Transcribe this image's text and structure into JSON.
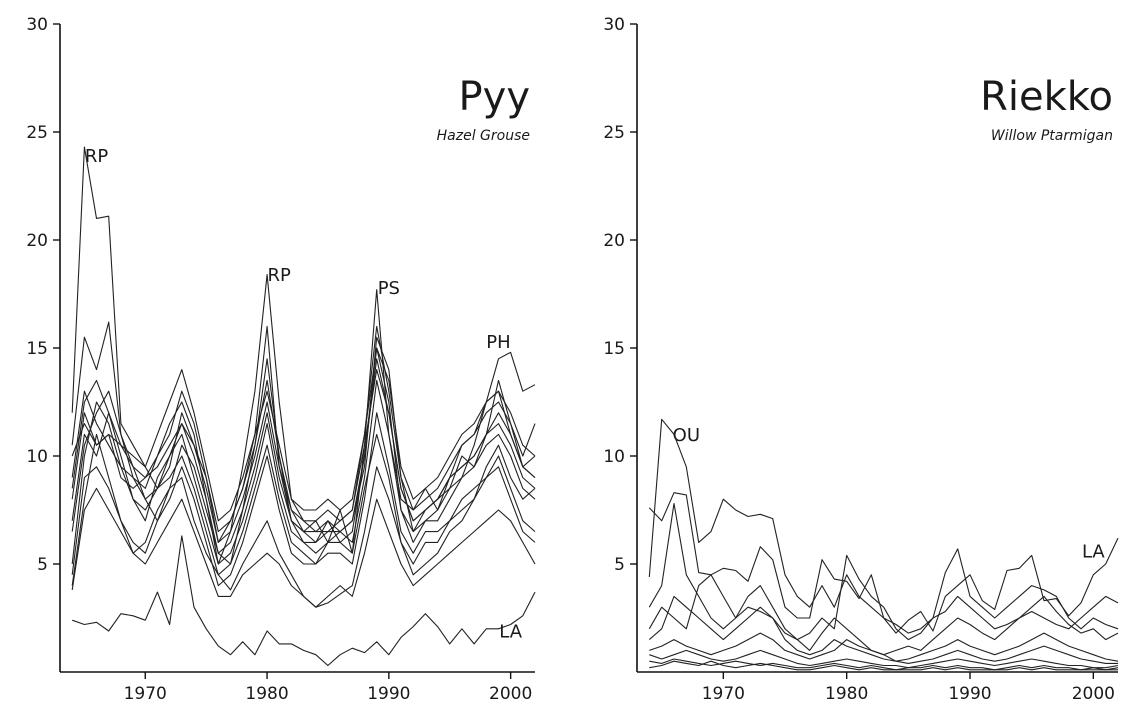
{
  "chart_data": [
    {
      "type": "line",
      "title": "Pyy",
      "subtitle": "Hazel Grouse",
      "xlim": [
        1963,
        2002
      ],
      "ylim": [
        0,
        30
      ],
      "xticks": [
        1970,
        1980,
        1990,
        2000
      ],
      "yticks": [
        5,
        10,
        15,
        20,
        25,
        30
      ],
      "annotations": [
        {
          "text": "RP",
          "x": 1966,
          "y": 23.6
        },
        {
          "text": "RP",
          "x": 1981,
          "y": 18.1
        },
        {
          "text": "PS",
          "x": 1990,
          "y": 17.5
        },
        {
          "text": "PH",
          "x": 1999,
          "y": 15.0
        },
        {
          "text": "LA",
          "x": 2000,
          "y": 1.6
        }
      ],
      "x": [
        1964,
        1965,
        1966,
        1967,
        1968,
        1969,
        1970,
        1971,
        1972,
        1973,
        1974,
        1975,
        1976,
        1977,
        1978,
        1979,
        1980,
        1981,
        1982,
        1983,
        1984,
        1985,
        1986,
        1987,
        1988,
        1989,
        1990,
        1991,
        1992,
        1993,
        1994,
        1995,
        1996,
        1997,
        1998,
        1999,
        2000,
        2001,
        2002
      ],
      "series": [
        {
          "values": [
            12.0,
            24.3,
            21.0,
            21.1,
            11.5,
            10.5,
            9.5,
            8.5,
            10.0,
            11.5,
            10.5,
            9.0,
            6.0,
            7.0,
            8.5,
            11.0,
            16.0,
            9.5,
            7.5,
            6.5,
            7.0,
            6.0,
            7.5,
            5.5,
            10.5,
            17.7,
            11.0,
            8.0,
            7.5,
            8.5,
            7.5,
            9.0,
            10.5,
            11.0,
            12.5,
            13.0,
            11.0,
            9.5,
            10.0
          ]
        },
        {
          "values": [
            8.0,
            12.0,
            10.5,
            11.0,
            9.0,
            8.5,
            9.0,
            10.0,
            11.5,
            12.5,
            11.0,
            8.0,
            5.0,
            6.5,
            9.5,
            13.0,
            18.4,
            12.5,
            8.0,
            7.0,
            6.5,
            7.0,
            6.5,
            7.0,
            9.5,
            15.5,
            14.0,
            9.0,
            6.5,
            7.5,
            8.0,
            8.5,
            9.0,
            10.5,
            12.5,
            14.5,
            14.8,
            13.0,
            13.3
          ]
        },
        {
          "values": [
            2.4,
            2.2,
            2.3,
            1.9,
            2.7,
            2.6,
            2.4,
            3.7,
            2.2,
            6.3,
            3.0,
            2.0,
            1.2,
            0.8,
            1.4,
            0.8,
            1.9,
            1.3,
            1.3,
            1.0,
            0.8,
            0.3,
            0.8,
            1.1,
            0.9,
            1.4,
            0.8,
            1.6,
            2.1,
            2.7,
            2.1,
            1.3,
            2.0,
            1.3,
            2.0,
            2.0,
            2.2,
            2.6,
            3.7
          ]
        },
        {
          "values": [
            4.0,
            8.0,
            11.0,
            9.0,
            7.0,
            5.5,
            6.0,
            7.5,
            8.5,
            9.0,
            7.0,
            5.5,
            4.5,
            3.8,
            5.0,
            6.0,
            7.0,
            5.5,
            4.5,
            3.5,
            3.0,
            3.2,
            3.6,
            4.0,
            6.5,
            9.5,
            8.0,
            6.0,
            4.5,
            5.0,
            5.5,
            6.5,
            7.0,
            8.0,
            9.5,
            10.5,
            9.0,
            8.0,
            8.5
          ]
        },
        {
          "values": [
            10.5,
            15.5,
            14.0,
            16.2,
            11.0,
            9.0,
            8.0,
            7.0,
            8.5,
            10.5,
            9.5,
            7.5,
            5.5,
            5.0,
            7.5,
            10.5,
            14.5,
            10.0,
            7.0,
            6.0,
            6.0,
            7.0,
            6.0,
            6.5,
            10.0,
            15.0,
            12.5,
            7.5,
            6.0,
            7.0,
            7.5,
            8.5,
            10.0,
            9.5,
            11.0,
            13.5,
            11.5,
            9.5,
            9.0
          ]
        },
        {
          "values": [
            5.0,
            10.0,
            12.5,
            11.5,
            9.5,
            8.0,
            7.5,
            8.5,
            9.5,
            12.0,
            10.5,
            8.5,
            6.0,
            6.5,
            8.0,
            10.0,
            12.5,
            9.5,
            7.0,
            6.5,
            6.5,
            6.5,
            7.0,
            7.5,
            10.5,
            14.0,
            12.0,
            8.5,
            7.0,
            7.5,
            8.0,
            9.0,
            9.5,
            10.0,
            11.0,
            11.5,
            10.5,
            9.0,
            8.5
          ]
        },
        {
          "values": [
            7.0,
            11.0,
            10.0,
            12.0,
            10.0,
            8.0,
            7.0,
            9.0,
            10.0,
            11.0,
            9.0,
            7.0,
            5.0,
            5.5,
            7.0,
            9.0,
            11.5,
            8.5,
            6.5,
            6.0,
            5.5,
            6.0,
            6.5,
            6.0,
            9.0,
            13.5,
            11.0,
            7.5,
            6.5,
            7.0,
            7.0,
            8.0,
            9.0,
            9.5,
            10.5,
            11.0,
            10.0,
            8.5,
            8.0
          ]
        },
        {
          "values": [
            4.5,
            9.0,
            9.5,
            8.5,
            7.0,
            6.0,
            5.5,
            7.0,
            8.0,
            9.5,
            8.0,
            6.0,
            4.0,
            4.5,
            6.0,
            8.0,
            10.0,
            7.5,
            5.5,
            5.0,
            5.0,
            5.5,
            5.5,
            5.0,
            8.0,
            12.0,
            9.5,
            6.5,
            5.5,
            6.5,
            6.5,
            7.0,
            8.0,
            8.5,
            9.0,
            10.0,
            8.5,
            7.0,
            6.5
          ]
        },
        {
          "values": [
            9.0,
            13.0,
            11.5,
            10.5,
            9.5,
            9.0,
            8.5,
            10.0,
            11.0,
            13.0,
            11.5,
            9.0,
            6.5,
            7.0,
            8.5,
            10.5,
            13.5,
            10.0,
            7.5,
            7.0,
            7.0,
            7.5,
            7.0,
            7.5,
            11.0,
            16.0,
            13.0,
            9.0,
            7.5,
            8.0,
            8.5,
            9.5,
            10.5,
            11.0,
            12.0,
            12.5,
            11.5,
            10.0,
            11.5
          ]
        },
        {
          "values": [
            6.5,
            10.5,
            12.0,
            13.0,
            11.0,
            9.5,
            8.0,
            8.5,
            9.0,
            10.0,
            8.5,
            6.5,
            4.5,
            5.0,
            6.5,
            8.5,
            10.5,
            8.0,
            6.0,
            5.5,
            5.0,
            6.0,
            6.0,
            5.5,
            8.5,
            11.0,
            9.0,
            6.0,
            5.0,
            6.0,
            6.0,
            7.0,
            7.5,
            8.0,
            9.0,
            9.5,
            8.0,
            6.5,
            6.0
          ]
        },
        {
          "values": [
            3.8,
            7.5,
            8.5,
            7.5,
            6.5,
            5.5,
            5.0,
            6.0,
            7.0,
            8.0,
            6.5,
            5.0,
            3.5,
            3.5,
            4.5,
            5.0,
            5.5,
            5.0,
            4.0,
            3.5,
            3.0,
            3.5,
            4.0,
            3.5,
            5.5,
            8.0,
            6.5,
            5.0,
            4.0,
            4.5,
            5.0,
            5.5,
            6.0,
            6.5,
            7.0,
            7.5,
            7.0,
            6.0,
            5.0
          ]
        },
        {
          "values": [
            8.5,
            12.5,
            13.5,
            12.0,
            10.5,
            9.5,
            9.0,
            9.5,
            10.5,
            11.5,
            10.0,
            8.0,
            5.5,
            6.0,
            7.5,
            9.5,
            12.0,
            9.0,
            7.0,
            6.5,
            6.0,
            6.5,
            6.5,
            7.0,
            10.0,
            14.5,
            12.0,
            8.5,
            7.0,
            7.5,
            8.0,
            9.0,
            9.5,
            10.0,
            11.0,
            12.0,
            11.0,
            9.5,
            9.0
          ]
        },
        {
          "values": [
            10.0,
            11.5,
            10.5,
            11.0,
            10.5,
            10.0,
            9.5,
            11.0,
            12.5,
            14.0,
            12.0,
            9.5,
            7.0,
            7.5,
            9.0,
            11.0,
            13.0,
            10.5,
            8.0,
            7.5,
            7.5,
            8.0,
            7.5,
            8.0,
            11.0,
            15.0,
            13.5,
            9.5,
            8.0,
            8.5,
            9.0,
            10.0,
            11.0,
            11.5,
            12.5,
            13.0,
            12.0,
            10.5,
            10.0
          ]
        }
      ]
    },
    {
      "type": "line",
      "title": "Riekko",
      "subtitle": "Willow Ptarmigan",
      "xlim": [
        1963,
        2002
      ],
      "ylim": [
        0,
        30
      ],
      "xticks": [
        1970,
        1980,
        1990,
        2000
      ],
      "yticks": [
        5,
        10,
        15,
        20,
        25,
        30
      ],
      "annotations": [
        {
          "text": "OU",
          "x": 1967,
          "y": 10.7
        },
        {
          "text": "LA",
          "x": 2000,
          "y": 5.3
        }
      ],
      "x": [
        1964,
        1965,
        1966,
        1967,
        1968,
        1969,
        1970,
        1971,
        1972,
        1973,
        1974,
        1975,
        1976,
        1977,
        1978,
        1979,
        1980,
        1981,
        1982,
        1983,
        1984,
        1985,
        1986,
        1987,
        1988,
        1989,
        1990,
        1991,
        1992,
        1993,
        1994,
        1995,
        1996,
        1997,
        1998,
        1999,
        2000,
        2001,
        2002
      ],
      "series": [
        {
          "values": [
            4.4,
            11.7,
            11.0,
            9.5,
            6.0,
            6.5,
            8.0,
            7.5,
            7.2,
            7.3,
            7.1,
            4.5,
            3.5,
            3.0,
            4.0,
            3.0,
            4.5,
            3.5,
            3.0,
            2.5,
            2.2,
            1.8,
            2.0,
            2.5,
            2.8,
            3.5,
            3.0,
            2.5,
            2.0,
            2.2,
            2.5,
            2.8,
            2.5,
            2.2,
            2.0,
            2.5,
            3.0,
            3.5,
            3.2
          ]
        },
        {
          "values": [
            7.6,
            7.0,
            8.3,
            8.2,
            4.6,
            4.5,
            4.8,
            4.7,
            4.2,
            5.8,
            5.2,
            3.0,
            2.5,
            2.5,
            5.2,
            4.3,
            4.2,
            3.4,
            4.5,
            2.5,
            1.8,
            2.4,
            2.8,
            1.9,
            3.5,
            4.0,
            4.5,
            3.3,
            2.9,
            4.7,
            4.8,
            5.4,
            3.3,
            3.4,
            2.6,
            3.2,
            4.5,
            5.0,
            6.2
          ]
        },
        {
          "values": [
            3.0,
            4.0,
            7.8,
            4.5,
            3.5,
            2.5,
            2.0,
            2.5,
            3.0,
            2.8,
            2.5,
            1.8,
            1.5,
            1.8,
            2.5,
            2.0,
            5.4,
            4.3,
            3.5,
            3.0,
            2.0,
            1.5,
            1.8,
            2.5,
            4.6,
            5.7,
            3.5,
            3.0,
            2.5,
            3.0,
            3.5,
            4.0,
            3.8,
            3.5,
            2.5,
            2.0,
            2.5,
            2.2,
            2.0
          ]
        },
        {
          "values": [
            2.0,
            3.0,
            2.5,
            2.0,
            4.0,
            4.5,
            3.5,
            2.5,
            3.5,
            4.0,
            3.0,
            2.0,
            1.5,
            1.0,
            1.8,
            2.5,
            2.0,
            1.5,
            1.0,
            0.8,
            1.0,
            1.2,
            1.0,
            1.5,
            2.0,
            2.5,
            2.2,
            1.8,
            1.5,
            2.0,
            2.5,
            3.0,
            3.5,
            2.8,
            2.2,
            1.8,
            2.0,
            1.5,
            1.8
          ]
        },
        {
          "values": [
            1.5,
            2.0,
            3.5,
            3.0,
            2.5,
            2.0,
            1.5,
            2.0,
            2.5,
            3.0,
            2.5,
            1.5,
            1.0,
            0.8,
            1.0,
            1.5,
            1.2,
            1.0,
            0.8,
            0.6,
            0.5,
            0.6,
            0.8,
            1.0,
            1.2,
            1.5,
            1.2,
            1.0,
            0.8,
            1.0,
            1.2,
            1.5,
            1.8,
            1.5,
            1.2,
            1.0,
            0.8,
            0.6,
            0.5
          ]
        },
        {
          "values": [
            1.0,
            1.2,
            1.5,
            1.2,
            1.0,
            0.8,
            1.0,
            1.2,
            1.5,
            1.8,
            1.5,
            1.0,
            0.8,
            0.6,
            0.8,
            1.0,
            1.5,
            1.2,
            1.0,
            0.8,
            0.5,
            0.4,
            0.5,
            0.6,
            0.8,
            1.0,
            0.8,
            0.6,
            0.5,
            0.6,
            0.8,
            1.0,
            1.2,
            1.0,
            0.8,
            0.6,
            0.5,
            0.4,
            0.4
          ]
        },
        {
          "values": [
            0.8,
            0.6,
            0.8,
            1.0,
            0.8,
            0.6,
            0.5,
            0.6,
            0.8,
            1.0,
            0.8,
            0.6,
            0.4,
            0.3,
            0.4,
            0.5,
            0.6,
            0.5,
            0.4,
            0.3,
            0.3,
            0.2,
            0.3,
            0.4,
            0.5,
            0.6,
            0.5,
            0.4,
            0.3,
            0.4,
            0.5,
            0.6,
            0.5,
            0.4,
            0.3,
            0.3,
            0.2,
            0.2,
            0.3
          ]
        },
        {
          "values": [
            0.5,
            0.4,
            0.6,
            0.5,
            0.4,
            0.3,
            0.4,
            0.5,
            0.4,
            0.3,
            0.4,
            0.3,
            0.2,
            0.2,
            0.3,
            0.4,
            0.3,
            0.2,
            0.3,
            0.2,
            0.1,
            0.2,
            0.2,
            0.3,
            0.2,
            0.3,
            0.2,
            0.2,
            0.1,
            0.2,
            0.3,
            0.2,
            0.3,
            0.2,
            0.2,
            0.1,
            0.2,
            0.1,
            0.2
          ]
        },
        {
          "values": [
            0.2,
            0.3,
            0.5,
            0.4,
            0.3,
            0.5,
            0.3,
            0.2,
            0.3,
            0.4,
            0.3,
            0.2,
            0.1,
            0.1,
            0.2,
            0.3,
            0.2,
            0.1,
            0.2,
            0.1,
            0.1,
            0.1,
            0.1,
            0.2,
            0.1,
            0.2,
            0.1,
            0.1,
            0.1,
            0.1,
            0.2,
            0.1,
            0.2,
            0.1,
            0.1,
            0.1,
            0.1,
            0.1,
            0.1
          ]
        }
      ]
    }
  ]
}
